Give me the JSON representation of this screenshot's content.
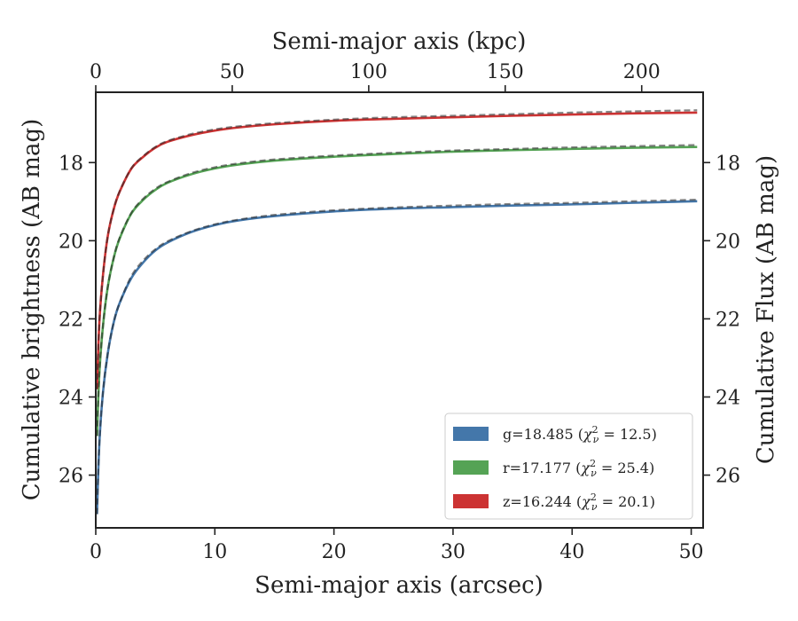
{
  "chart_data": {
    "type": "line",
    "title": "",
    "xlabel": "Semi-major axis (arcsec)",
    "x2label": "Semi-major axis (kpc)",
    "ylabel": "Cumulative brightness (AB mag)",
    "y2label": "Cumulative Flux (AB mag)",
    "xlim": [
      0,
      51
    ],
    "x2lim": [
      0,
      222.5
    ],
    "ylim": [
      27.35,
      16.2
    ],
    "x_ticks": [
      0,
      10,
      20,
      30,
      40,
      50
    ],
    "x2_ticks": [
      0,
      50,
      100,
      150,
      200
    ],
    "y_ticks": [
      18,
      20,
      22,
      24,
      26
    ],
    "grid": false,
    "legend_position": "lower-right",
    "series": [
      {
        "name": "g=18.485 (χ²_ν = 12.5)",
        "band": "g",
        "mag": "18.485",
        "chi2": "12.5",
        "color": "#4477aa",
        "x": [
          0.1,
          0.3,
          0.6,
          1.0,
          1.5,
          2.0,
          3.0,
          4.0,
          5.0,
          6.0,
          8.0,
          10.0,
          12.0,
          15.0,
          20.0,
          25.0,
          30.0,
          35.0,
          40.0,
          45.0,
          50.5
        ],
        "y": [
          27.0,
          25.2,
          23.9,
          22.9,
          22.1,
          21.6,
          20.95,
          20.55,
          20.25,
          20.05,
          19.78,
          19.6,
          19.48,
          19.37,
          19.25,
          19.18,
          19.14,
          19.1,
          19.07,
          19.03,
          18.99
        ],
        "model_y": [
          27.0,
          25.2,
          23.9,
          22.9,
          22.1,
          21.6,
          20.9,
          20.5,
          20.22,
          20.02,
          19.76,
          19.58,
          19.46,
          19.34,
          19.22,
          19.15,
          19.1,
          19.06,
          19.03,
          18.99,
          18.95
        ]
      },
      {
        "name": "r=17.177 (χ²_ν = 25.4)",
        "band": "r",
        "mag": "17.177",
        "chi2": "25.4",
        "color": "#55a355",
        "x": [
          0.1,
          0.3,
          0.6,
          1.0,
          1.5,
          2.0,
          3.0,
          4.0,
          5.0,
          6.0,
          8.0,
          10.0,
          12.0,
          15.0,
          20.0,
          25.0,
          30.0,
          35.0,
          40.0,
          45.0,
          50.5
        ],
        "y": [
          25.0,
          23.4,
          22.2,
          21.2,
          20.45,
          19.95,
          19.3,
          18.95,
          18.7,
          18.52,
          18.3,
          18.15,
          18.05,
          17.95,
          17.85,
          17.78,
          17.72,
          17.68,
          17.65,
          17.62,
          17.6
        ],
        "model_y": [
          25.0,
          23.4,
          22.2,
          21.2,
          20.45,
          19.93,
          19.28,
          18.92,
          18.67,
          18.5,
          18.27,
          18.12,
          18.02,
          17.92,
          17.82,
          17.75,
          17.69,
          17.65,
          17.61,
          17.58,
          17.55
        ]
      },
      {
        "name": "z=16.244 (χ²_ν = 20.1)",
        "band": "z",
        "mag": "16.244",
        "chi2": "20.1",
        "color": "#cc3333",
        "x": [
          0.1,
          0.3,
          0.6,
          1.0,
          1.5,
          2.0,
          3.0,
          4.0,
          5.0,
          6.0,
          8.0,
          10.0,
          12.0,
          15.0,
          20.0,
          25.0,
          30.0,
          35.0,
          40.0,
          45.0,
          50.5
        ],
        "y": [
          23.8,
          22.1,
          20.9,
          19.9,
          19.2,
          18.75,
          18.15,
          17.85,
          17.62,
          17.47,
          17.3,
          17.18,
          17.1,
          17.02,
          16.93,
          16.88,
          16.84,
          16.8,
          16.77,
          16.74,
          16.72
        ],
        "model_y": [
          23.8,
          22.1,
          20.9,
          19.9,
          19.2,
          18.74,
          18.14,
          17.83,
          17.6,
          17.45,
          17.27,
          17.15,
          17.07,
          16.99,
          16.9,
          16.84,
          16.8,
          16.76,
          16.72,
          16.69,
          16.66
        ]
      }
    ]
  }
}
